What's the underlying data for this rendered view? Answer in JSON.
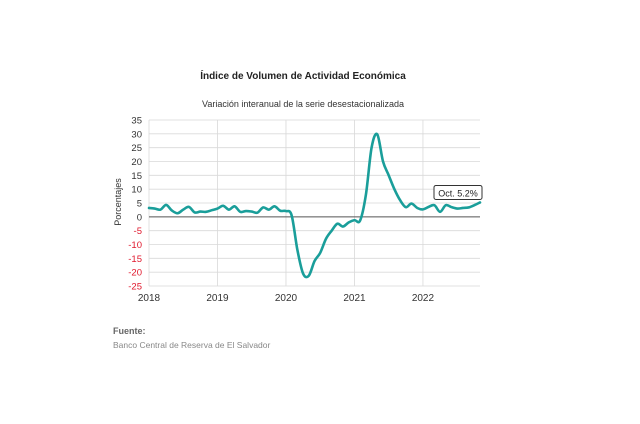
{
  "chart_data": {
    "type": "line",
    "title": "Índice de Volumen de  Actividad Económica",
    "subtitle": "Variación interanual de la serie desestacionalizada",
    "ylabel": "Porcentajes",
    "xlabel": "",
    "ylim": [
      -25,
      35
    ],
    "yticks": [
      35,
      30,
      25,
      20,
      15,
      10,
      5,
      0,
      -5,
      -10,
      -15,
      -20,
      -25
    ],
    "ytick_labels": [
      "35",
      "30",
      "25",
      "20",
      "15",
      "10",
      "5",
      "0",
      "-5",
      "-10",
      "-15",
      "-20",
      "-25"
    ],
    "xlim": [
      2018.0,
      2022.833
    ],
    "xticks": [
      2018,
      2019,
      2020,
      2021,
      2022
    ],
    "xtick_labels": [
      "2018",
      "2019",
      "2020",
      "2021",
      "2022"
    ],
    "grid": true,
    "line_color": "#1a9e9a",
    "negative_tick_color": "#e0182d",
    "series": [
      {
        "x": [
          2018.0,
          2018.083,
          2018.167,
          2018.25,
          2018.333,
          2018.417,
          2018.5,
          2018.583,
          2018.667,
          2018.75,
          2018.833,
          2018.917,
          2019.0,
          2019.083,
          2019.167,
          2019.25,
          2019.333,
          2019.417,
          2019.5,
          2019.583,
          2019.667,
          2019.75,
          2019.833,
          2019.917,
          2020.0,
          2020.083,
          2020.167,
          2020.25,
          2020.333,
          2020.417,
          2020.5,
          2020.583,
          2020.667,
          2020.75,
          2020.833,
          2020.917,
          2021.0,
          2021.083,
          2021.167,
          2021.25,
          2021.333,
          2021.417,
          2021.5,
          2021.583,
          2021.667,
          2021.75,
          2021.833,
          2021.917,
          2022.0,
          2022.083,
          2022.167,
          2022.25,
          2022.333,
          2022.417,
          2022.5,
          2022.583,
          2022.667,
          2022.75,
          2022.833
        ],
        "y": [
          3.2,
          3.0,
          2.6,
          4.3,
          2.3,
          1.3,
          2.6,
          3.6,
          1.6,
          1.9,
          1.8,
          2.4,
          3.0,
          4.0,
          2.6,
          3.8,
          1.8,
          2.1,
          1.9,
          1.5,
          3.4,
          2.6,
          3.8,
          2.2,
          2.1,
          0.5,
          -12.0,
          -20.5,
          -21.3,
          -16.0,
          -13.0,
          -8.0,
          -5.0,
          -2.5,
          -3.5,
          -2.0,
          -1.2,
          -1.3,
          8.0,
          25.0,
          29.8,
          20.0,
          15.0,
          10.0,
          6.0,
          3.5,
          4.8,
          3.2,
          2.7,
          3.6,
          4.2,
          1.8,
          4.2,
          3.5,
          3.0,
          3.2,
          3.4,
          4.2,
          5.2
        ]
      }
    ],
    "annotation": {
      "text": "Oct. 5.2%",
      "x": 2022.833,
      "y": 5.2
    }
  },
  "source": {
    "label": "Fuente:",
    "text": "Banco Central de Reserva de El Salvador"
  }
}
